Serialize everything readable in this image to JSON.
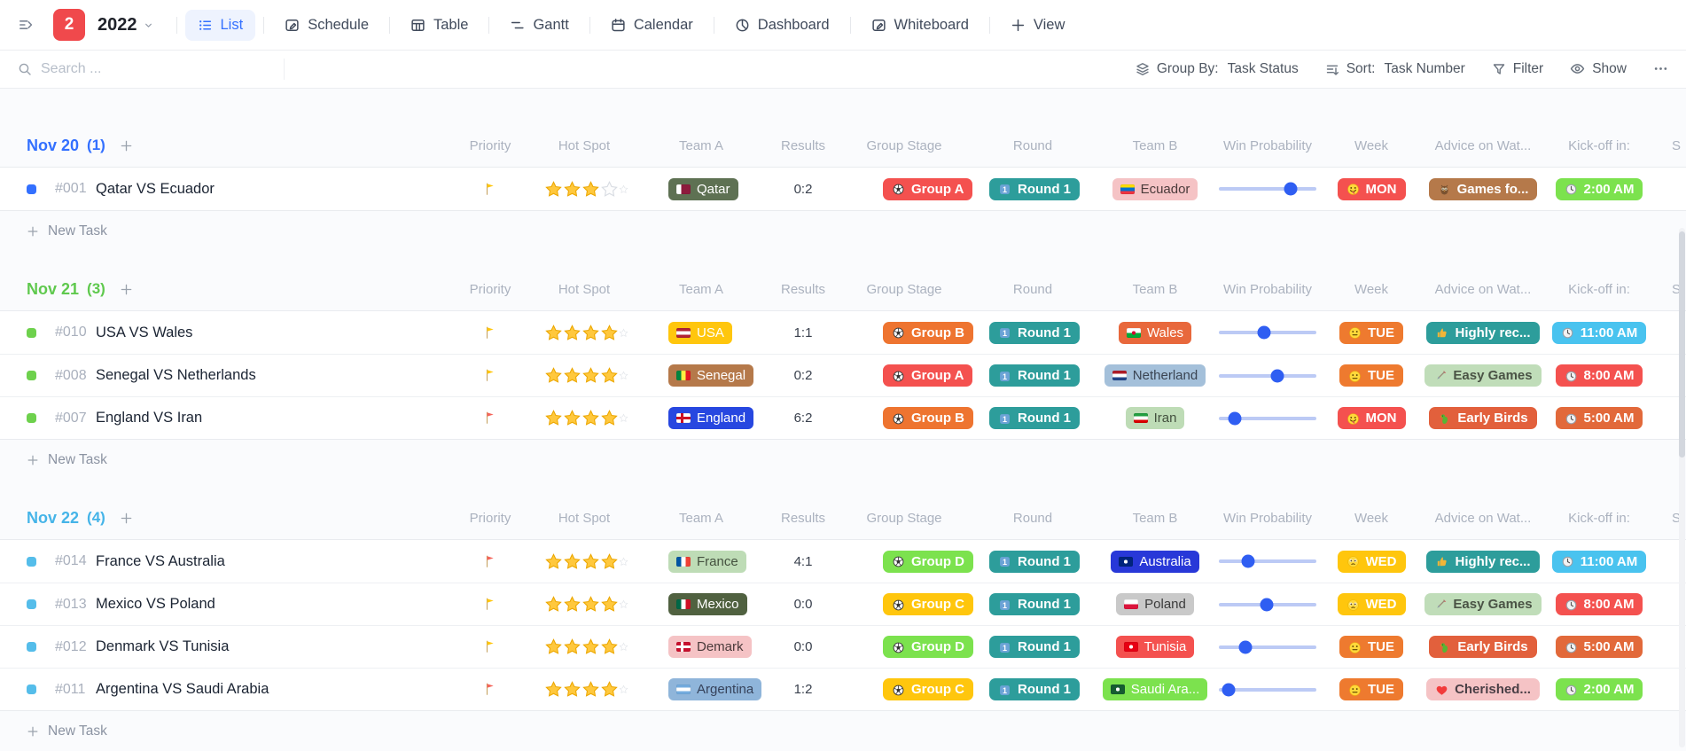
{
  "header": {
    "badge_count": "2",
    "workspace_title": "2022",
    "tabs": [
      {
        "label": "List",
        "icon": "list",
        "active": true
      },
      {
        "label": "Schedule",
        "icon": "schedule",
        "active": false
      },
      {
        "label": "Table",
        "icon": "table",
        "active": false
      },
      {
        "label": "Gantt",
        "icon": "gantt",
        "active": false
      },
      {
        "label": "Calendar",
        "icon": "calendar",
        "active": false
      },
      {
        "label": "Dashboard",
        "icon": "dashboard",
        "active": false
      },
      {
        "label": "Whiteboard",
        "icon": "whiteboard",
        "active": false
      },
      {
        "label": "View",
        "icon": "plus",
        "active": false
      }
    ]
  },
  "toolbar": {
    "search_placeholder": "Search ...",
    "group_by_label": "Group By:",
    "group_by_value": "Task Status",
    "sort_label": "Sort:",
    "sort_value": "Task Number",
    "filter_label": "Filter",
    "show_label": "Show",
    "more_label": "..."
  },
  "columns": [
    "Priority",
    "Hot Spot",
    "Team A",
    "Results",
    "Group Stage",
    "Round",
    "Team B",
    "Win Probability",
    "Week",
    "Advice on Wat...",
    "Kick-off in:",
    "S"
  ],
  "new_task_label": "New Task",
  "colors": {
    "accent_blue": "#3370ff",
    "slider_fill": "#2f5ef2",
    "slider_track": "#bccaf5",
    "priority_yellow": "#ffc60d",
    "priority_red": "#f4645a"
  },
  "groups": [
    {
      "title": "Nov 20",
      "count": "(1)",
      "color": "#3370ff",
      "status_color": "#3370ff",
      "rows": [
        {
          "id": "#001",
          "name": "Qatar VS Ecuador",
          "priority_color": "#ffc60d",
          "stars_filled": 3,
          "stars_empty": 1,
          "team_a": {
            "label": "Qatar",
            "bg": "#5e7153",
            "color": "#ffffff",
            "flag": {
              "type": "v",
              "colors": [
                "#ffffff",
                "#8d1b3d",
                "#8d1b3d"
              ]
            }
          },
          "results": "0:2",
          "group_stage": {
            "label": "Group A",
            "bg": "#f4514f"
          },
          "round": {
            "label": "Round 1",
            "bg": "#2d9d9b"
          },
          "team_b": {
            "label": "Ecuador",
            "bg": "#f5c3c5",
            "color": "#4a3a3a",
            "flag": {
              "type": "h",
              "colors": [
                "#ffdd00",
                "#0072ce",
                "#ef3340"
              ]
            }
          },
          "win_probability": 0.74,
          "week": {
            "label": "MON",
            "bg": "#f4514f",
            "icon": "zany-face"
          },
          "advice": {
            "label": "Games fo...",
            "bg": "#b5794a",
            "color": "#ffffff",
            "icon": "owl"
          },
          "kickoff": {
            "label": "2:00 AM",
            "bg": "#7ce24e"
          }
        }
      ]
    },
    {
      "title": "Nov 21",
      "count": "(3)",
      "color": "#5fc94e",
      "status_color": "#6ed14d",
      "rows": [
        {
          "id": "#010",
          "name": "USA VS Wales",
          "priority_color": "#ffc60d",
          "stars_filled": 4,
          "stars_empty": 0,
          "team_a": {
            "label": "USA",
            "bg": "#ffc60d",
            "color": "#ffffff",
            "flag": {
              "type": "h",
              "colors": [
                "#b22234",
                "#ffffff",
                "#b22234"
              ]
            }
          },
          "results": "1:1",
          "group_stage": {
            "label": "Group B",
            "bg": "#ee7430"
          },
          "round": {
            "label": "Round 1",
            "bg": "#2d9d9b"
          },
          "team_b": {
            "label": "Wales",
            "bg": "#e8683c",
            "color": "#ffffff",
            "flag": {
              "type": "h",
              "colors": [
                "#ffffff",
                "#00ab39"
              ],
              "dot": "#d30731"
            }
          },
          "win_probability": 0.46,
          "week": {
            "label": "TUE",
            "bg": "#ee7a2f",
            "icon": "neutral-face"
          },
          "advice": {
            "label": "Highly rec...",
            "bg": "#2d9d9b",
            "color": "#ffffff",
            "icon": "thumbs-up"
          },
          "kickoff": {
            "label": "11:00 AM",
            "bg": "#49c3ef"
          }
        },
        {
          "id": "#008",
          "name": "Senegal VS Netherlands",
          "priority_color": "#ffc60d",
          "stars_filled": 4,
          "stars_empty": 0,
          "team_a": {
            "label": "Senegal",
            "bg": "#b5794a",
            "color": "#ffffff",
            "flag": {
              "type": "v",
              "colors": [
                "#00853f",
                "#fdef42",
                "#e31b23"
              ]
            }
          },
          "results": "0:2",
          "group_stage": {
            "label": "Group A",
            "bg": "#f4514f"
          },
          "round": {
            "label": "Round 1",
            "bg": "#2d9d9b"
          },
          "team_b": {
            "label": "Netherland",
            "bg": "#a4c0da",
            "color": "#3a4452",
            "flag": {
              "type": "h",
              "colors": [
                "#ae1c28",
                "#ffffff",
                "#21468b"
              ]
            }
          },
          "win_probability": 0.6,
          "week": {
            "label": "TUE",
            "bg": "#ee7a2f",
            "icon": "neutral-face"
          },
          "advice": {
            "label": "Easy Games",
            "bg": "#c0ddb9",
            "color": "#4a5345",
            "icon": "dart"
          },
          "kickoff": {
            "label": "8:00 AM",
            "bg": "#f4514f"
          }
        },
        {
          "id": "#007",
          "name": "England VS Iran",
          "priority_color": "#f4645a",
          "stars_filled": 4,
          "stars_empty": 0,
          "team_a": {
            "label": "England",
            "bg": "#2747e0",
            "color": "#ffffff",
            "flag": {
              "type": "cross",
              "colors": [
                "#ffffff",
                "#ce1124"
              ]
            }
          },
          "results": "6:2",
          "group_stage": {
            "label": "Group B",
            "bg": "#ee7430"
          },
          "round": {
            "label": "Round 1",
            "bg": "#2d9d9b"
          },
          "team_b": {
            "label": "Iran",
            "bg": "#bedcb6",
            "color": "#44513f",
            "flag": {
              "type": "h",
              "colors": [
                "#239f40",
                "#ffffff",
                "#da0000"
              ]
            }
          },
          "win_probability": 0.16,
          "week": {
            "label": "MON",
            "bg": "#f4514f",
            "icon": "zany-face"
          },
          "advice": {
            "label": "Early Birds",
            "bg": "#e2603c",
            "color": "#ffffff",
            "icon": "parrot"
          },
          "kickoff": {
            "label": "5:00 AM",
            "bg": "#e2693a"
          }
        }
      ]
    },
    {
      "title": "Nov 22",
      "count": "(4)",
      "color": "#45b4e8",
      "status_color": "#55bdea",
      "rows": [
        {
          "id": "#014",
          "name": "France VS Australia",
          "priority_color": "#f4645a",
          "stars_filled": 4,
          "stars_empty": 0,
          "team_a": {
            "label": "France",
            "bg": "#bedcb6",
            "color": "#44513f",
            "flag": {
              "type": "v",
              "colors": [
                "#0055a4",
                "#ffffff",
                "#ef4135"
              ]
            }
          },
          "results": "4:1",
          "group_stage": {
            "label": "Group D",
            "bg": "#7ce24e"
          },
          "round": {
            "label": "Round 1",
            "bg": "#2d9d9b"
          },
          "team_b": {
            "label": "Australia",
            "bg": "#2838d8",
            "color": "#ffffff",
            "flag": {
              "type": "solid",
              "colors": [
                "#00247d"
              ],
              "dot": "#ffffff"
            }
          },
          "win_probability": 0.3,
          "week": {
            "label": "WED",
            "bg": "#ffc60d",
            "icon": "pleading-face"
          },
          "advice": {
            "label": "Highly rec...",
            "bg": "#2d9d9b",
            "color": "#ffffff",
            "icon": "thumbs-up"
          },
          "kickoff": {
            "label": "11:00 AM",
            "bg": "#49c3ef"
          }
        },
        {
          "id": "#013",
          "name": "Mexico VS Poland",
          "priority_color": "#ffc60d",
          "stars_filled": 4,
          "stars_empty": 0,
          "team_a": {
            "label": "Mexico",
            "bg": "#506140",
            "color": "#ffffff",
            "flag": {
              "type": "v",
              "colors": [
                "#006847",
                "#ffffff",
                "#ce1126"
              ]
            }
          },
          "results": "0:0",
          "group_stage": {
            "label": "Group C",
            "bg": "#ffc60d"
          },
          "round": {
            "label": "Round 1",
            "bg": "#2d9d9b"
          },
          "team_b": {
            "label": "Poland",
            "bg": "#c9c9c9",
            "color": "#3c3c3c",
            "flag": {
              "type": "h",
              "colors": [
                "#ffffff",
                "#dc143c"
              ]
            }
          },
          "win_probability": 0.49,
          "week": {
            "label": "WED",
            "bg": "#ffc60d",
            "icon": "pleading-face"
          },
          "advice": {
            "label": "Easy Games",
            "bg": "#c0ddb9",
            "color": "#4a5345",
            "icon": "dart"
          },
          "kickoff": {
            "label": "8:00 AM",
            "bg": "#f4514f"
          }
        },
        {
          "id": "#012",
          "name": "Denmark VS Tunisia",
          "priority_color": "#ffc60d",
          "stars_filled": 4,
          "stars_empty": 0,
          "team_a": {
            "label": "Demark",
            "bg": "#f5c3c5",
            "color": "#4a3a3a",
            "flag": {
              "type": "cross",
              "colors": [
                "#c8102e",
                "#ffffff"
              ]
            }
          },
          "results": "0:0",
          "group_stage": {
            "label": "Group D",
            "bg": "#7ce24e"
          },
          "round": {
            "label": "Round 1",
            "bg": "#2d9d9b"
          },
          "team_b": {
            "label": "Tunisia",
            "bg": "#f4514f",
            "color": "#ffffff",
            "flag": {
              "type": "solid",
              "colors": [
                "#e70013"
              ],
              "dot": "#ffffff"
            }
          },
          "win_probability": 0.27,
          "week": {
            "label": "TUE",
            "bg": "#ee7a2f",
            "icon": "neutral-face"
          },
          "advice": {
            "label": "Early Birds",
            "bg": "#e2603c",
            "color": "#ffffff",
            "icon": "parrot"
          },
          "kickoff": {
            "label": "5:00 AM",
            "bg": "#e2693a"
          }
        },
        {
          "id": "#011",
          "name": "Argentina VS Saudi Arabia",
          "priority_color": "#f4645a",
          "stars_filled": 4,
          "stars_empty": 0,
          "team_a": {
            "label": "Argentina",
            "bg": "#8fb5da",
            "color": "#36425a",
            "flag": {
              "type": "h",
              "colors": [
                "#74acdf",
                "#ffffff",
                "#74acdf"
              ]
            }
          },
          "results": "1:2",
          "group_stage": {
            "label": "Group C",
            "bg": "#ffc60d"
          },
          "round": {
            "label": "Round 1",
            "bg": "#2d9d9b"
          },
          "team_b": {
            "label": "Saudi Ara...",
            "bg": "#7ce24e",
            "color": "#ffffff",
            "flag": {
              "type": "solid",
              "colors": [
                "#165d31"
              ],
              "dot": "#ffffff"
            }
          },
          "win_probability": 0.1,
          "week": {
            "label": "TUE",
            "bg": "#ee7a2f",
            "icon": "neutral-face"
          },
          "advice": {
            "label": "Cherished...",
            "bg": "#f5c3c5",
            "color": "#4a3f46",
            "icon": "heart"
          },
          "kickoff": {
            "label": "2:00 AM",
            "bg": "#7ce24e"
          }
        }
      ]
    }
  ]
}
